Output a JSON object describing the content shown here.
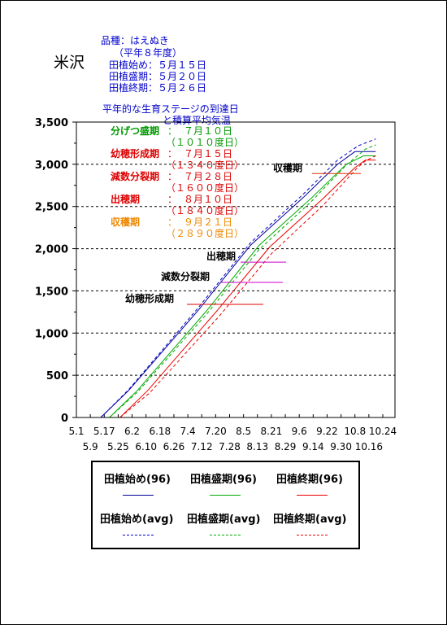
{
  "header": {
    "station": "米沢",
    "variety": "品種：はえぬき",
    "year": "（平年８年度）",
    "plant_start": "田植始め：５月１５日",
    "plant_peak": "田植盛期：５月２０日",
    "plant_end": "田植終期：５月２６日",
    "stage_title_1": "平年的な生育ステージの到達日",
    "stage_title_2": "と積算平均気温"
  },
  "stages": [
    {
      "name": "分げつ盛期",
      "sep": "：",
      "date": "７月１０日",
      "temp": "（１０１０度日）",
      "color": "#009900"
    },
    {
      "name": "幼穂形成期",
      "sep": "：",
      "date": "７月１５日",
      "temp": "（１３４０度日）",
      "color": "#dd0000"
    },
    {
      "name": "減数分裂期",
      "sep": "：",
      "date": "７月２８日",
      "temp": "（１６００度日）",
      "color": "#dd0000"
    },
    {
      "name": "出穂期",
      "sep": "：",
      "date": "８月１０日",
      "temp": "（１８４０度日）",
      "color": "#dd0000"
    },
    {
      "name": "収穫期",
      "sep": "：",
      "date": "９月２１日",
      "temp": "（２８９０度日）",
      "color": "#ee8800"
    }
  ],
  "annotations": [
    {
      "label": "収穫期",
      "value": 2890,
      "color": "#dd3300"
    },
    {
      "label": "出穂期",
      "value": 1840,
      "color": "#cc00cc"
    },
    {
      "label": "減数分裂期",
      "value": 1600,
      "color": "#cc00cc"
    },
    {
      "label": "幼穂形成期",
      "value": 1340,
      "color": "#dd0000"
    }
  ],
  "legend": {
    "items": [
      {
        "label": "田植始め(96)",
        "color": "#000099",
        "dash": false
      },
      {
        "label": "田植盛期(96)",
        "color": "#00aa00",
        "dash": false
      },
      {
        "label": "田植終期(96)",
        "color": "#ee0000",
        "dash": false
      },
      {
        "label": "田植始め(avg)",
        "color": "#0000cc",
        "dash": true
      },
      {
        "label": "田植盛期(avg)",
        "color": "#00aa00",
        "dash": true
      },
      {
        "label": "田植終期(avg)",
        "color": "#ee0000",
        "dash": true
      }
    ]
  },
  "chart_data": {
    "type": "line",
    "xlabel": "",
    "ylabel": "",
    "ylim": [
      0,
      3500
    ],
    "yticks": [
      0,
      500,
      1000,
      1500,
      2000,
      2500,
      3000,
      3500
    ],
    "ytick_labels": [
      "0",
      "500",
      "1,000",
      "1,500",
      "2,000",
      "2,500",
      "3,000",
      "3,500"
    ],
    "grid": "horizontal dashed",
    "x_ticks_upper": [
      "5.1",
      "5.17",
      "6.2",
      "6.18",
      "7.4",
      "7.20",
      "8.5",
      "8.21",
      "9.6",
      "9.22",
      "10.8",
      "10.24"
    ],
    "x_ticks_lower": [
      "5.9",
      "5.25",
      "6.10",
      "6.26",
      "7.12",
      "7.28",
      "8.13",
      "8.29",
      "9.14",
      "9.30",
      "10.16"
    ],
    "x_range_days": [
      0,
      183
    ],
    "x_origin": "5.1",
    "series": [
      {
        "name": "田植始め(96)",
        "color": "#000099",
        "dash": false,
        "points": [
          [
            14,
            0
          ],
          [
            30,
            320
          ],
          [
            70,
            1270
          ],
          [
            100,
            2040
          ],
          [
            130,
            2600
          ],
          [
            150,
            3000
          ],
          [
            160,
            3150
          ],
          [
            172,
            3150
          ]
        ]
      },
      {
        "name": "田植盛期(96)",
        "color": "#00aa00",
        "dash": false,
        "points": [
          [
            19,
            0
          ],
          [
            35,
            320
          ],
          [
            75,
            1270
          ],
          [
            105,
            2040
          ],
          [
            135,
            2600
          ],
          [
            155,
            3000
          ],
          [
            165,
            3100
          ],
          [
            172,
            3100
          ]
        ]
      },
      {
        "name": "田植終期(96)",
        "color": "#ee0000",
        "dash": false,
        "points": [
          [
            25,
            0
          ],
          [
            41,
            320
          ],
          [
            81,
            1270
          ],
          [
            111,
            2020
          ],
          [
            141,
            2580
          ],
          [
            160,
            2960
          ],
          [
            166,
            3050
          ],
          [
            172,
            3050
          ]
        ]
      },
      {
        "name": "田植始め(avg)",
        "color": "#0000cc",
        "dash": true,
        "points": [
          [
            14,
            0
          ],
          [
            30,
            330
          ],
          [
            70,
            1300
          ],
          [
            100,
            2070
          ],
          [
            130,
            2640
          ],
          [
            150,
            3050
          ],
          [
            162,
            3220
          ],
          [
            172,
            3300
          ]
        ]
      },
      {
        "name": "田植盛期(avg)",
        "color": "#00aa00",
        "dash": true,
        "points": [
          [
            19,
            0
          ],
          [
            35,
            300
          ],
          [
            75,
            1230
          ],
          [
            105,
            1990
          ],
          [
            135,
            2560
          ],
          [
            155,
            2990
          ],
          [
            166,
            3180
          ],
          [
            172,
            3230
          ]
        ]
      },
      {
        "name": "田植終期(avg)",
        "color": "#ee0000",
        "dash": true,
        "points": [
          [
            25,
            0
          ],
          [
            42,
            290
          ],
          [
            82,
            1200
          ],
          [
            112,
            1940
          ],
          [
            142,
            2520
          ],
          [
            161,
            2950
          ],
          [
            166,
            3040
          ],
          [
            172,
            3100
          ]
        ]
      }
    ]
  }
}
